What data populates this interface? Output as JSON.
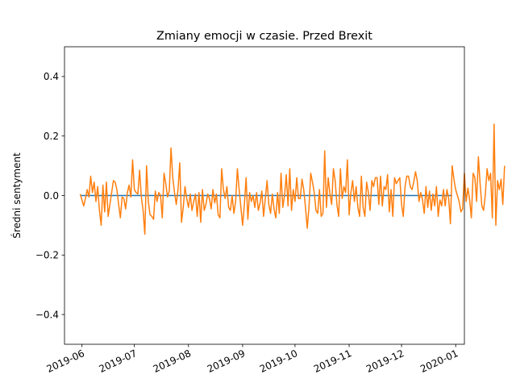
{
  "chart_data": {
    "type": "line",
    "title": "Zmiany emocji w czasie. Przed Brexit",
    "xlabel": "",
    "ylabel": "Średni sentyment",
    "ylim": [
      -0.5,
      0.5
    ],
    "xlim": [
      "2019-05-22",
      "2020-01-06"
    ],
    "x_ticks": [
      "2019-06",
      "2019-07",
      "2019-08",
      "2019-09",
      "2019-10",
      "2019-11",
      "2019-12",
      "2020-01"
    ],
    "y_ticks": [
      -0.4,
      -0.2,
      0.0,
      0.2,
      0.4
    ],
    "y_tick_labels": [
      "−0.4",
      "−0.2",
      "0.0",
      "0.2",
      "0.4"
    ],
    "x_tick_rotation_deg": 25,
    "grid": false,
    "legend": "none",
    "series": [
      {
        "color": "#1f77b4",
        "start": "2019-05-31",
        "end": "2019-12-30",
        "values": [
          0.0,
          0.0
        ]
      },
      {
        "color": "#ff7f0e",
        "start": "2019-05-31",
        "step_days": 1,
        "values": [
          0.005,
          -0.015,
          -0.035,
          -0.01,
          0.02,
          -0.005,
          0.065,
          0.01,
          0.045,
          -0.02,
          0.03,
          -0.05,
          -0.1,
          0.035,
          -0.055,
          0.045,
          -0.07,
          -0.03,
          0.01,
          0.05,
          0.045,
          0.02,
          -0.03,
          -0.075,
          -0.005,
          -0.01,
          -0.045,
          0.01,
          0.035,
          -0.005,
          0.12,
          0.02,
          0.01,
          0.005,
          0.085,
          -0.005,
          -0.05,
          -0.13,
          0.1,
          -0.02,
          -0.065,
          -0.07,
          -0.08,
          0.015,
          -0.02,
          0.01,
          0.0,
          -0.075,
          0.075,
          0.04,
          -0.005,
          0.015,
          0.16,
          0.06,
          0.01,
          -0.03,
          0.02,
          0.11,
          -0.09,
          -0.04,
          0.03,
          -0.01,
          -0.04,
          0.005,
          -0.05,
          -0.02,
          0.005,
          -0.07,
          0.01,
          -0.09,
          0.02,
          -0.05,
          -0.03,
          0.005,
          -0.01,
          -0.045,
          0.02,
          -0.025,
          0.005,
          -0.065,
          -0.075,
          0.09,
          0.02,
          -0.01,
          0.03,
          -0.04,
          -0.05,
          0.0,
          -0.06,
          -0.02,
          0.09,
          0.02,
          -0.04,
          -0.1,
          -0.03,
          0.06,
          -0.08,
          0.01,
          -0.02,
          0.0,
          -0.04,
          0.01,
          -0.05,
          -0.025,
          0.015,
          -0.07,
          -0.01,
          0.05,
          -0.03,
          -0.06,
          0.005,
          -0.045,
          -0.075,
          0.01,
          -0.06,
          0.075,
          -0.04,
          0.0,
          0.07,
          -0.035,
          0.09,
          -0.05,
          0.02,
          -0.02,
          0.06,
          -0.01,
          -0.01,
          0.055,
          0.02,
          -0.04,
          -0.11,
          -0.04,
          0.075,
          0.045,
          0.01,
          -0.05,
          -0.06,
          0.02,
          -0.07,
          -0.06,
          0.15,
          -0.04,
          0.06,
          0.005,
          -0.03,
          0.09,
          0.05,
          -0.03,
          -0.07,
          0.09,
          -0.01,
          0.03,
          0.01,
          0.12,
          -0.065,
          0.01,
          0.05,
          -0.02,
          0.03,
          -0.04,
          -0.07,
          0.065,
          -0.04,
          -0.07,
          0.045,
          0.01,
          -0.05,
          0.05,
          0.03,
          0.06,
          0.06,
          -0.03,
          0.065,
          -0.035,
          0.03,
          0.02,
          0.07,
          -0.055,
          0.02,
          -0.07,
          0.06,
          0.04,
          0.05,
          0.06,
          -0.03,
          -0.07,
          0.03,
          0.065,
          0.065,
          0.03,
          0.02,
          0.045,
          0.08,
          0.05,
          -0.02,
          0.01,
          -0.015,
          -0.06,
          0.03,
          -0.04,
          0.015,
          -0.05,
          0.005,
          -0.035,
          0.03,
          -0.07,
          -0.015,
          -0.035,
          0.02,
          -0.035,
          0.02,
          -0.01,
          -0.095,
          0.1,
          0.055,
          0.02,
          0.0,
          -0.02,
          -0.055,
          -0.045,
          0.075,
          -0.02,
          0.025,
          -0.015,
          -0.075,
          0.075,
          0.06,
          -0.02,
          0.13,
          0.04,
          -0.035,
          -0.05,
          0.005,
          0.09,
          0.05,
          0.075,
          -0.075,
          0.24,
          -0.1,
          0.05,
          0.02,
          0.055,
          -0.03,
          0.1
        ]
      }
    ]
  }
}
